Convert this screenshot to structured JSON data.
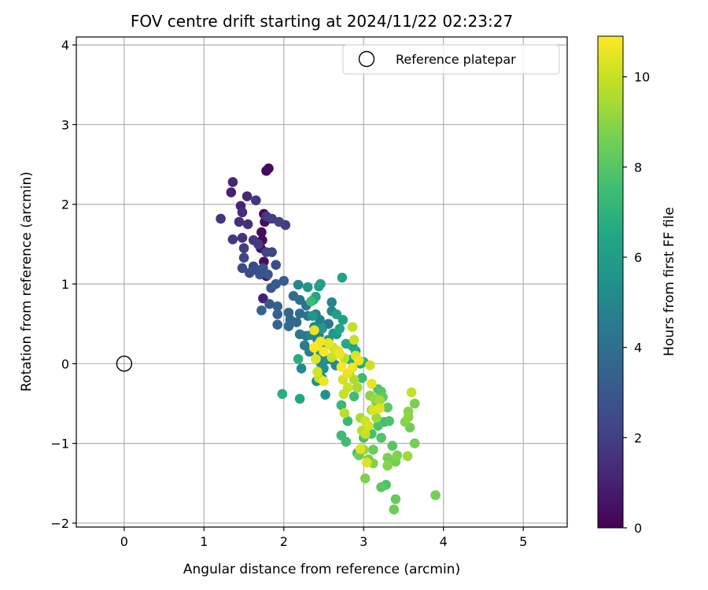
{
  "chart_data": {
    "type": "scatter",
    "title": "FOV centre drift starting at 2024/11/22 02:23:27",
    "xlabel": "Angular distance from reference (arcmin)",
    "ylabel": "Rotation from reference (arcmin)",
    "xlim": [
      -0.6,
      5.55
    ],
    "ylim": [
      -2.05,
      4.1
    ],
    "xticks": [
      0,
      1,
      2,
      3,
      4,
      5
    ],
    "yticks": [
      -2,
      -1,
      0,
      1,
      2,
      3,
      4
    ],
    "grid": true,
    "legend": {
      "placement": "top-right",
      "entries": [
        "Reference platepar"
      ]
    },
    "reference_point": {
      "name": "Reference platepar",
      "x": 0,
      "y": 0
    },
    "colorbar": {
      "label": "Hours from first FF file",
      "range": [
        0,
        10.9
      ],
      "ticks": [
        0,
        2,
        4,
        6,
        8,
        10
      ],
      "colormap": "viridis"
    },
    "series": [
      {
        "color_by": "Hours from first FF file",
        "points": [
          [
            1.78,
            2.42,
            0.2
          ],
          [
            1.81,
            2.45,
            0.3
          ],
          [
            1.75,
            1.88,
            0.2
          ],
          [
            1.72,
            1.65,
            0.3
          ],
          [
            1.76,
            1.78,
            0.4
          ],
          [
            1.73,
            1.55,
            0.3
          ],
          [
            1.71,
            1.45,
            0.5
          ],
          [
            1.75,
            1.28,
            0.4
          ],
          [
            1.78,
            1.1,
            0.6
          ],
          [
            1.74,
            0.82,
            0.9
          ],
          [
            1.36,
            2.28,
            1.2
          ],
          [
            1.34,
            2.15,
            1.0
          ],
          [
            1.54,
            2.1,
            1.3
          ],
          [
            1.46,
            1.98,
            1.1
          ],
          [
            1.48,
            1.9,
            1.4
          ],
          [
            1.44,
            1.78,
            1.5
          ],
          [
            1.55,
            1.75,
            1.5
          ],
          [
            1.21,
            1.82,
            1.6
          ],
          [
            1.65,
            2.05,
            1.8
          ],
          [
            1.78,
            1.85,
            1.8
          ],
          [
            1.85,
            1.82,
            2.0
          ],
          [
            1.94,
            1.78,
            2.1
          ],
          [
            2.02,
            1.74,
            1.9
          ],
          [
            1.36,
            1.56,
            1.7
          ],
          [
            1.48,
            1.58,
            1.6
          ],
          [
            1.62,
            1.55,
            1.7
          ],
          [
            1.68,
            1.5,
            1.9
          ],
          [
            1.5,
            1.45,
            2.0
          ],
          [
            1.78,
            1.4,
            2.1
          ],
          [
            1.85,
            1.4,
            2.2
          ],
          [
            1.5,
            1.33,
            2.3
          ],
          [
            1.48,
            1.2,
            2.4
          ],
          [
            1.62,
            1.22,
            2.3
          ],
          [
            1.57,
            1.14,
            2.5
          ],
          [
            1.65,
            1.18,
            2.6
          ],
          [
            1.7,
            1.12,
            2.7
          ],
          [
            1.74,
            1.2,
            2.8
          ],
          [
            1.8,
            1.12,
            2.9
          ],
          [
            1.9,
            1.24,
            2.6
          ],
          [
            1.84,
            0.95,
            3.0
          ],
          [
            1.9,
            1.0,
            3.1
          ],
          [
            2.0,
            1.04,
            3.2
          ],
          [
            1.82,
            0.75,
            3.0
          ],
          [
            1.92,
            0.72,
            3.3
          ],
          [
            1.72,
            0.67,
            3.4
          ],
          [
            1.92,
            0.62,
            3.4
          ],
          [
            1.92,
            0.49,
            3.5
          ],
          [
            2.06,
            0.64,
            3.6
          ],
          [
            2.08,
            0.55,
            3.7
          ],
          [
            2.06,
            0.47,
            3.8
          ],
          [
            2.16,
            0.52,
            3.8
          ],
          [
            2.2,
            0.63,
            3.9
          ],
          [
            2.12,
            0.85,
            3.9
          ],
          [
            2.2,
            0.8,
            4.0
          ],
          [
            2.28,
            0.73,
            4.1
          ],
          [
            2.3,
            0.6,
            4.2
          ],
          [
            2.2,
            0.37,
            4.3
          ],
          [
            2.28,
            0.35,
            4.4
          ],
          [
            2.26,
            0.23,
            4.5
          ],
          [
            2.32,
            0.15,
            4.6
          ],
          [
            2.4,
            0.62,
            4.6
          ],
          [
            2.45,
            0.55,
            4.7
          ],
          [
            2.38,
            0.46,
            4.8
          ],
          [
            2.34,
            0.36,
            4.9
          ],
          [
            2.42,
            0.3,
            5.0
          ],
          [
            2.5,
            0.23,
            5.1
          ],
          [
            2.46,
            0.14,
            5.2
          ],
          [
            2.52,
            0.05,
            5.3
          ],
          [
            2.5,
            -0.06,
            5.4
          ],
          [
            2.46,
            0.01,
            5.4
          ],
          [
            2.6,
            0.05,
            5.2
          ],
          [
            2.65,
            -0.02,
            5.1
          ],
          [
            2.48,
            -0.18,
            5.3
          ],
          [
            2.52,
            -0.39,
            5.5
          ],
          [
            2.41,
            -0.22,
            5.4
          ],
          [
            2.22,
            -0.06,
            5.0
          ],
          [
            2.56,
            0.3,
            5.6
          ],
          [
            2.62,
            0.38,
            5.6
          ],
          [
            2.6,
            0.66,
            5.0
          ],
          [
            2.6,
            0.77,
            4.9
          ],
          [
            2.56,
            0.5,
            4.3
          ],
          [
            2.44,
            0.35,
            4.5
          ],
          [
            2.3,
            0.96,
            5.6
          ],
          [
            2.18,
            0.99,
            5.0
          ],
          [
            2.44,
            0.97,
            6.0
          ],
          [
            2.46,
            1.0,
            6.1
          ],
          [
            2.37,
            0.8,
            6.3
          ],
          [
            2.4,
            0.84,
            6.5
          ],
          [
            2.34,
            0.78,
            7.4
          ],
          [
            2.18,
            0.06,
            6.8
          ],
          [
            2.73,
            1.08,
            6.3
          ],
          [
            2.66,
            0.62,
            6.1
          ],
          [
            2.74,
            0.55,
            6.2
          ],
          [
            2.7,
            0.44,
            6.4
          ],
          [
            2.78,
            0.25,
            6.6
          ],
          [
            2.86,
            0.22,
            6.0
          ],
          [
            2.9,
            0.16,
            6.5
          ],
          [
            2.84,
            0.05,
            6.7
          ],
          [
            2.96,
            -0.0,
            6.4
          ],
          [
            3.0,
            0.02,
            6.8
          ],
          [
            1.98,
            -0.38,
            6.8
          ],
          [
            2.2,
            -0.44,
            6.5
          ],
          [
            2.66,
            0.37,
            5.9
          ],
          [
            2.48,
            0.44,
            5.8
          ],
          [
            2.36,
            0.6,
            5.7
          ],
          [
            2.72,
            -0.52,
            7.2
          ],
          [
            2.8,
            -0.72,
            7.3
          ],
          [
            2.72,
            -0.9,
            7.4
          ],
          [
            2.78,
            -0.98,
            7.5
          ],
          [
            2.92,
            -1.12,
            7.6
          ],
          [
            3.0,
            -0.93,
            7.7
          ],
          [
            3.1,
            -0.88,
            7.7
          ],
          [
            3.18,
            -0.78,
            7.8
          ],
          [
            3.22,
            -0.93,
            7.9
          ],
          [
            3.26,
            -0.73,
            7.6
          ],
          [
            3.32,
            -0.72,
            7.8
          ],
          [
            3.36,
            -1.03,
            8.0
          ],
          [
            3.22,
            -1.55,
            8.1
          ],
          [
            3.28,
            -1.52,
            7.8
          ],
          [
            3.4,
            -1.7,
            8.3
          ],
          [
            3.38,
            -1.83,
            8.4
          ],
          [
            3.9,
            -1.65,
            8.6
          ],
          [
            3.58,
            -0.8,
            8.5
          ],
          [
            3.64,
            -0.5,
            8.7
          ],
          [
            3.64,
            -1.0,
            8.6
          ],
          [
            3.56,
            -0.6,
            8.9
          ],
          [
            3.56,
            -0.67,
            9.0
          ],
          [
            3.52,
            -0.73,
            8.9
          ],
          [
            3.42,
            -1.15,
            8.8
          ],
          [
            3.4,
            -1.23,
            8.6
          ],
          [
            3.3,
            -1.18,
            8.7
          ],
          [
            3.3,
            -1.28,
            8.9
          ],
          [
            3.12,
            -1.25,
            8.8
          ],
          [
            3.06,
            -1.2,
            8.6
          ],
          [
            3.02,
            -1.44,
            8.8
          ],
          [
            3.12,
            -1.08,
            8.4
          ],
          [
            2.94,
            -1.15,
            8.5
          ],
          [
            3.0,
            -1.08,
            9.2
          ],
          [
            3.16,
            -0.5,
            8.5
          ],
          [
            3.24,
            -0.42,
            8.3
          ],
          [
            3.22,
            -0.35,
            8.0
          ],
          [
            3.3,
            -0.55,
            8.2
          ],
          [
            3.18,
            -0.32,
            7.9
          ],
          [
            2.88,
            -0.41,
            7.5
          ],
          [
            2.98,
            -0.18,
            7.4
          ],
          [
            2.92,
            -0.3,
            7.6
          ],
          [
            3.6,
            -0.36,
            10.0
          ],
          [
            3.55,
            -1.16,
            9.3
          ],
          [
            2.96,
            -0.68,
            9.5
          ],
          [
            2.98,
            -0.84,
            9.7
          ],
          [
            3.02,
            -0.72,
            10.1
          ],
          [
            3.06,
            -0.78,
            10.2
          ],
          [
            3.02,
            -0.88,
            10.0
          ],
          [
            3.12,
            -0.58,
            10.3
          ],
          [
            3.2,
            -0.56,
            10.4
          ],
          [
            3.1,
            -0.25,
            10.5
          ],
          [
            3.04,
            -1.24,
            10.3
          ],
          [
            2.96,
            -1.07,
            10.4
          ],
          [
            2.76,
            -0.62,
            9.8
          ],
          [
            2.75,
            -0.38,
            9.9
          ],
          [
            2.8,
            -0.3,
            10.0
          ],
          [
            2.74,
            -0.2,
            10.2
          ],
          [
            2.8,
            -0.12,
            10.5
          ],
          [
            2.86,
            -0.05,
            10.7
          ],
          [
            2.88,
            -0.2,
            9.6
          ],
          [
            2.92,
            -0.3,
            9.5
          ],
          [
            2.82,
            -0.12,
            9.4
          ],
          [
            2.68,
            0.16,
            10.4
          ],
          [
            2.7,
            0.12,
            10.6
          ],
          [
            2.72,
            -0.04,
            10.8
          ],
          [
            2.56,
            0.26,
            10.5
          ],
          [
            2.5,
            0.15,
            10.8
          ],
          [
            2.42,
            0.23,
            10.6
          ],
          [
            2.38,
            0.2,
            10.9
          ],
          [
            2.46,
            0.28,
            10.7
          ],
          [
            2.4,
            0.06,
            10.4
          ],
          [
            2.42,
            -0.1,
            10.2
          ],
          [
            2.44,
            -0.18,
            10.0
          ],
          [
            2.5,
            -0.22,
            10.6
          ],
          [
            2.38,
            0.42,
            10.5
          ],
          [
            2.86,
            0.46,
            9.9
          ],
          [
            2.88,
            0.3,
            10.0
          ],
          [
            2.9,
            0.1,
            10.3
          ],
          [
            2.94,
            0.04,
            10.6
          ],
          [
            3.08,
            -0.02,
            10.1
          ],
          [
            2.62,
            0.2,
            10.2
          ],
          [
            2.6,
            0.08,
            10.0
          ],
          [
            2.76,
            0.07,
            9.8
          ],
          [
            2.7,
            0.12,
            9.5
          ],
          [
            3.08,
            -0.4,
            9.0
          ],
          [
            3.14,
            -0.44,
            9.2
          ],
          [
            3.2,
            -0.46,
            9.4
          ],
          [
            3.1,
            -0.58,
            9.1
          ],
          [
            3.16,
            -0.68,
            9.3
          ]
        ]
      }
    ]
  }
}
